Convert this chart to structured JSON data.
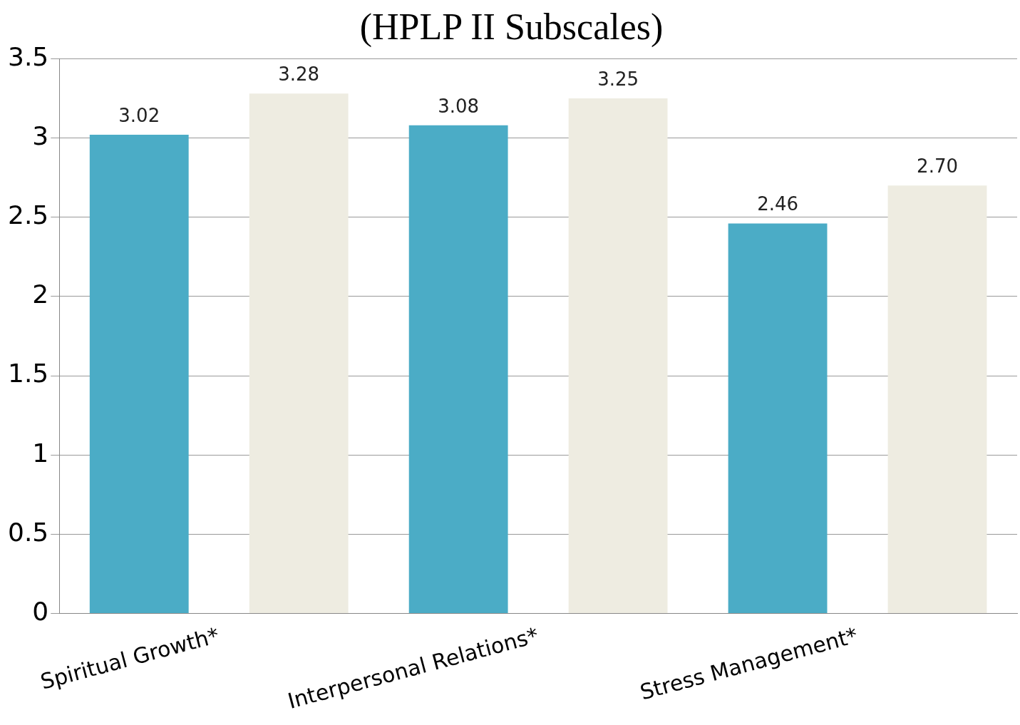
{
  "chart_data": {
    "type": "bar",
    "title": "(HPLP II Subscales)",
    "categories": [
      "Spiritual Growth*",
      "Interpersonal Relations*",
      "Stress Management*"
    ],
    "series": [
      {
        "color": "#4bacc6",
        "values": [
          3.02,
          3.08,
          2.46
        ],
        "value_labels": [
          "3.02",
          "3.08",
          "2.46"
        ]
      },
      {
        "color": "#eeece1",
        "values": [
          3.28,
          3.25,
          2.7
        ],
        "value_labels": [
          "3.28",
          "3.25",
          "2.70"
        ]
      }
    ],
    "ylim": [
      0,
      3.5
    ],
    "yticks": [
      0,
      0.5,
      1,
      1.5,
      2,
      2.5,
      3,
      3.5
    ],
    "grid": "y",
    "legend": false
  }
}
